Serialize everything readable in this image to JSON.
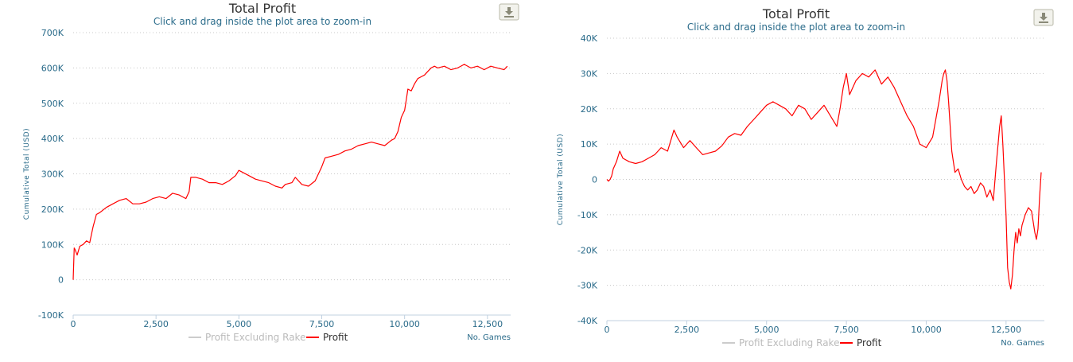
{
  "chart_data": [
    {
      "type": "line",
      "title": "Total Profit",
      "subtitle": "Click and drag inside the plot area to zoom-in",
      "ylabel": "Cumulative Total (USD)",
      "xlabel": "No. Games",
      "ylim": [
        -100000,
        700000
      ],
      "xlim": [
        0,
        13200
      ],
      "yticks": [
        -100000,
        0,
        100000,
        200000,
        300000,
        400000,
        500000,
        600000,
        700000
      ],
      "ytick_labels": [
        "-100K",
        "0",
        "100K",
        "200K",
        "300K",
        "400K",
        "500K",
        "600K",
        "700K"
      ],
      "xticks": [
        0,
        2500,
        5000,
        7500,
        10000,
        12500
      ],
      "xtick_labels": [
        "0",
        "2,500",
        "5,000",
        "7,500",
        "10,000",
        "12,500"
      ],
      "grid": true,
      "legend_position": "bottom-center",
      "series": [
        {
          "name": "Profit Excluding Rake",
          "color": "#cccccc",
          "x": [],
          "y": []
        },
        {
          "name": "Profit",
          "color": "#ff0000",
          "x": [
            0,
            30,
            60,
            120,
            200,
            300,
            400,
            500,
            600,
            700,
            800,
            1000,
            1200,
            1400,
            1600,
            1800,
            2000,
            2200,
            2400,
            2600,
            2800,
            3000,
            3200,
            3400,
            3500,
            3550,
            3700,
            3900,
            4100,
            4300,
            4500,
            4700,
            4900,
            5000,
            5100,
            5300,
            5500,
            5700,
            5900,
            6100,
            6300,
            6400,
            6600,
            6700,
            6900,
            7100,
            7300,
            7500,
            7600,
            7800,
            8000,
            8200,
            8400,
            8600,
            8800,
            9000,
            9200,
            9400,
            9600,
            9700,
            9800,
            9900,
            10000,
            10050,
            10100,
            10200,
            10300,
            10400,
            10500,
            10600,
            10700,
            10800,
            10900,
            11000,
            11200,
            11400,
            11600,
            11800,
            12000,
            12200,
            12400,
            12600,
            12800,
            13000,
            13100
          ],
          "y": [
            0,
            90000,
            85000,
            70000,
            95000,
            100000,
            110000,
            105000,
            150000,
            185000,
            190000,
            205000,
            215000,
            225000,
            230000,
            215000,
            215000,
            220000,
            230000,
            235000,
            230000,
            245000,
            240000,
            230000,
            250000,
            290000,
            290000,
            285000,
            275000,
            275000,
            270000,
            280000,
            295000,
            310000,
            305000,
            295000,
            285000,
            280000,
            275000,
            265000,
            260000,
            270000,
            275000,
            290000,
            270000,
            265000,
            280000,
            320000,
            345000,
            350000,
            355000,
            365000,
            370000,
            380000,
            385000,
            390000,
            385000,
            380000,
            395000,
            400000,
            420000,
            460000,
            480000,
            510000,
            540000,
            535000,
            555000,
            570000,
            575000,
            580000,
            590000,
            600000,
            605000,
            600000,
            605000,
            595000,
            600000,
            610000,
            600000,
            605000,
            595000,
            605000,
            600000,
            595000,
            605000
          ]
        }
      ]
    },
    {
      "type": "line",
      "title": "Total Profit",
      "subtitle": "Click and drag inside the plot area to zoom-in",
      "ylabel": "Cumulative Total (USD)",
      "xlabel": "No. Games",
      "ylim": [
        -40000,
        40000
      ],
      "xlim": [
        0,
        13700
      ],
      "yticks": [
        -40000,
        -30000,
        -20000,
        -10000,
        0,
        10000,
        20000,
        30000,
        40000
      ],
      "ytick_labels": [
        "-40K",
        "-30K",
        "-20K",
        "-10K",
        "0",
        "10K",
        "20K",
        "30K",
        "40K"
      ],
      "xticks": [
        0,
        2500,
        5000,
        7500,
        10000,
        12500
      ],
      "xtick_labels": [
        "0",
        "2,500",
        "5,000",
        "7,500",
        "10,000",
        "12,500"
      ],
      "grid": true,
      "legend_position": "bottom-center",
      "series": [
        {
          "name": "Profit Excluding Rake",
          "color": "#cccccc",
          "x": [],
          "y": []
        },
        {
          "name": "Profit",
          "color": "#ff0000",
          "x": [
            0,
            50,
            100,
            150,
            200,
            300,
            400,
            500,
            700,
            900,
            1100,
            1300,
            1500,
            1700,
            1900,
            2000,
            2100,
            2200,
            2400,
            2600,
            2800,
            3000,
            3200,
            3400,
            3600,
            3800,
            4000,
            4200,
            4400,
            4600,
            4800,
            5000,
            5200,
            5400,
            5600,
            5800,
            6000,
            6200,
            6400,
            6600,
            6800,
            7000,
            7200,
            7300,
            7400,
            7500,
            7600,
            7800,
            8000,
            8200,
            8400,
            8600,
            8800,
            9000,
            9200,
            9400,
            9600,
            9800,
            10000,
            10200,
            10300,
            10400,
            10500,
            10550,
            10600,
            10650,
            10700,
            10750,
            10800,
            10900,
            11000,
            11100,
            11200,
            11300,
            11400,
            11500,
            11600,
            11700,
            11800,
            11900,
            12000,
            12100,
            12200,
            12300,
            12350,
            12400,
            12450,
            12500,
            12550,
            12600,
            12650,
            12700,
            12750,
            12800,
            12850,
            12900,
            12950,
            13000,
            13100,
            13200,
            13300,
            13400,
            13450,
            13500,
            13550,
            13600
          ],
          "y": [
            0,
            -500,
            0,
            1000,
            3000,
            5000,
            8000,
            6000,
            5000,
            4500,
            5000,
            6000,
            7000,
            9000,
            8000,
            11000,
            14000,
            12000,
            9000,
            11000,
            9000,
            7000,
            7500,
            8000,
            9500,
            12000,
            13000,
            12500,
            15000,
            17000,
            19000,
            21000,
            22000,
            21000,
            20000,
            18000,
            21000,
            20000,
            17000,
            19000,
            21000,
            18000,
            15000,
            20000,
            26000,
            30000,
            24000,
            28000,
            30000,
            29000,
            31000,
            27000,
            29000,
            26000,
            22000,
            18000,
            15000,
            10000,
            9000,
            12000,
            17000,
            22000,
            28000,
            30000,
            31000,
            28000,
            22000,
            15000,
            8000,
            2000,
            3000,
            0,
            -2000,
            -3000,
            -2000,
            -4000,
            -3000,
            -1000,
            -2000,
            -5000,
            -3000,
            -6000,
            5000,
            15000,
            18000,
            10000,
            0,
            -10000,
            -25000,
            -29000,
            -31000,
            -27000,
            -20000,
            -15000,
            -18000,
            -14000,
            -16000,
            -13000,
            -10000,
            -8000,
            -9000,
            -15000,
            -17000,
            -14000,
            -5000,
            2000
          ]
        }
      ]
    }
  ]
}
